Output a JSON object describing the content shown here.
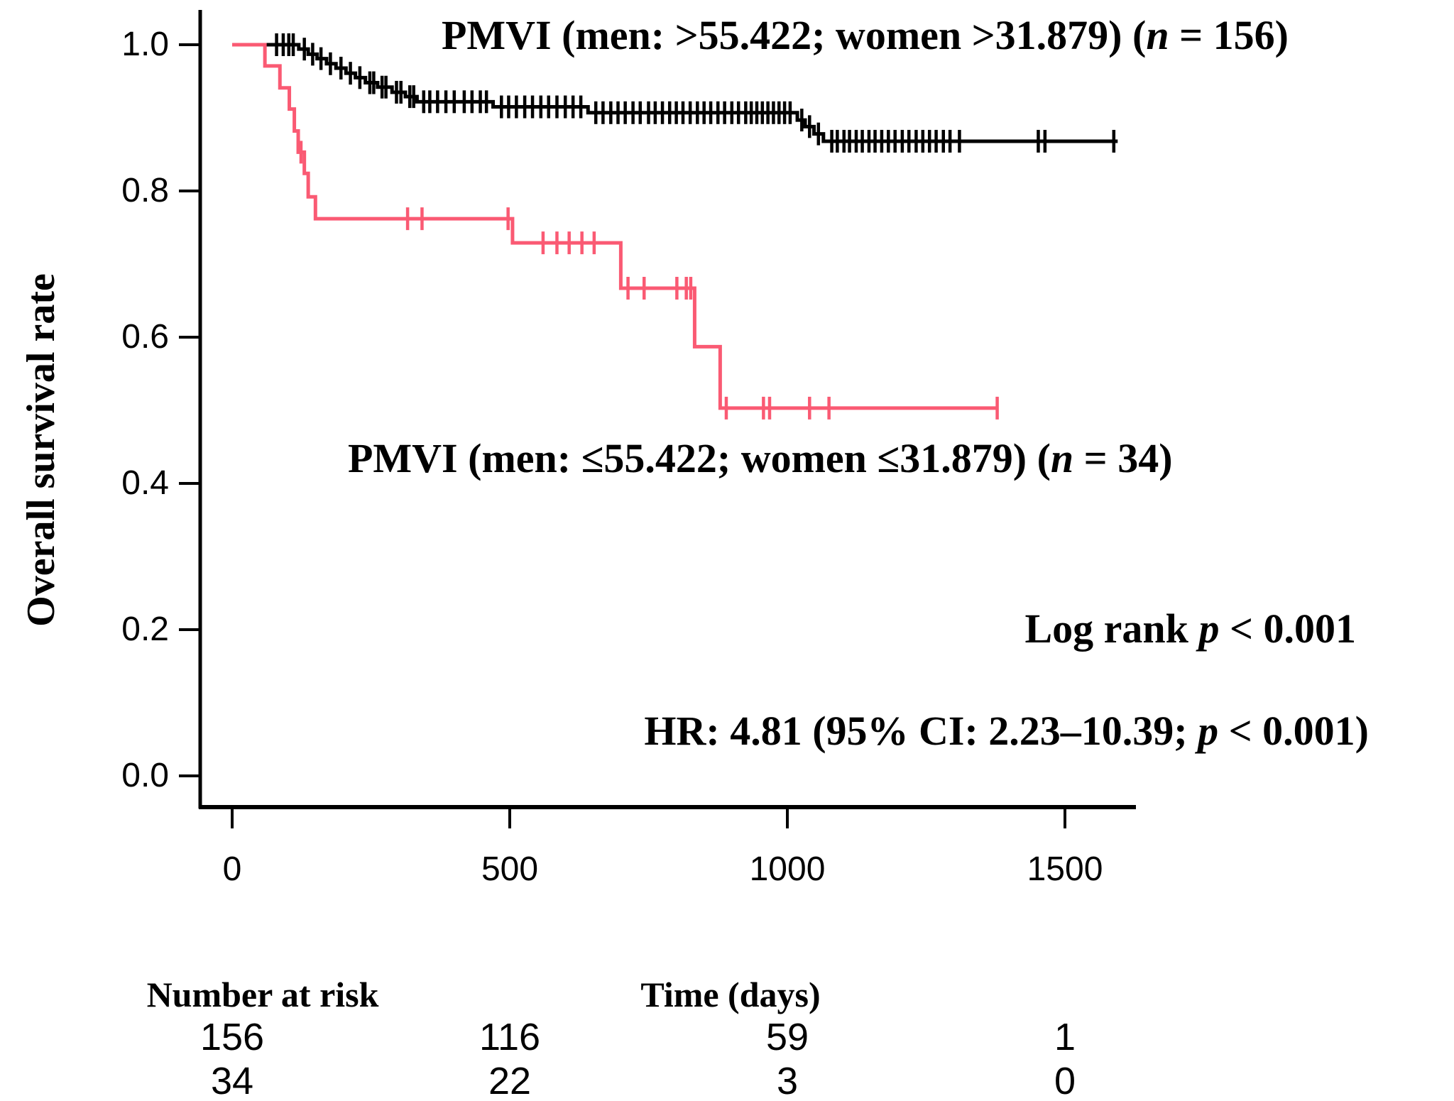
{
  "chart_data": {
    "type": "line",
    "subtype": "kaplan-meier-step-curves",
    "title": "",
    "xlabel": "Time (days)",
    "ylabel": "Overall survival rate",
    "xlim": [
      0,
      1656
    ],
    "ylim": [
      0.0,
      1.0
    ],
    "x_ticks": [
      0,
      500,
      1000,
      1500
    ],
    "y_ticks": [
      {
        "v": 1.0,
        "label": "1.0"
      },
      {
        "v": 0.8,
        "label": "0.8"
      },
      {
        "v": 0.6,
        "label": "0.6"
      },
      {
        "v": 0.4,
        "label": "0.4"
      },
      {
        "v": 0.2,
        "label": "0.2"
      },
      {
        "v": 0.0,
        "label": "0.0"
      }
    ],
    "grid": false,
    "legend_position": "labels-inside-plot",
    "series": [
      {
        "name": "pmvi-high",
        "label_parts": [
          "PMVI (men: >55.422; women >31.879) (",
          "n",
          " = 156)"
        ],
        "n": 156,
        "color": "#000000",
        "start": [
          0,
          1.0
        ],
        "steps": [
          [
            120,
            0.994
          ],
          [
            137,
            0.987
          ],
          [
            153,
            0.981
          ],
          [
            170,
            0.974
          ],
          [
            187,
            0.968
          ],
          [
            205,
            0.961
          ],
          [
            222,
            0.955
          ],
          [
            240,
            0.948
          ],
          [
            262,
            0.942
          ],
          [
            288,
            0.935
          ],
          [
            312,
            0.929
          ],
          [
            333,
            0.922
          ],
          [
            470,
            0.915
          ],
          [
            641,
            0.907
          ],
          [
            1018,
            0.897
          ],
          [
            1032,
            0.888
          ],
          [
            1048,
            0.878
          ],
          [
            1065,
            0.868
          ]
        ],
        "end_time": 1595,
        "final_survival": 0.868,
        "censor_times": [
          80,
          92,
          102,
          110,
          130,
          145,
          160,
          177,
          196,
          213,
          230,
          248,
          255,
          270,
          277,
          296,
          304,
          320,
          327,
          345,
          356,
          370,
          385,
          400,
          418,
          432,
          447,
          458,
          485,
          498,
          512,
          527,
          541,
          556,
          570,
          585,
          600,
          614,
          628,
          655,
          668,
          682,
          695,
          708,
          722,
          735,
          750,
          762,
          775,
          788,
          800,
          812,
          825,
          838,
          850,
          862,
          875,
          887,
          900,
          912,
          925,
          935,
          945,
          955,
          965,
          975,
          985,
          995,
          1005,
          1026,
          1040,
          1056,
          1080,
          1090,
          1102,
          1112,
          1124,
          1135,
          1147,
          1158,
          1170,
          1182,
          1194,
          1207,
          1219,
          1232,
          1244,
          1256,
          1268,
          1281,
          1293,
          1310,
          1452,
          1464,
          1588
        ]
      },
      {
        "name": "pmvi-low",
        "label_parts": [
          "PMVI (men: ≤55.422; women ≤31.879) (",
          "n",
          " = 34)"
        ],
        "n": 34,
        "color": "#FA5A73",
        "start": [
          0,
          1.0
        ],
        "steps": [
          [
            59,
            0.971
          ],
          [
            86,
            0.941
          ],
          [
            103,
            0.912
          ],
          [
            112,
            0.882
          ],
          [
            119,
            0.853
          ],
          [
            130,
            0.824
          ],
          [
            137,
            0.792
          ],
          [
            150,
            0.762
          ],
          [
            505,
            0.729
          ],
          [
            700,
            0.667
          ],
          [
            833,
            0.587
          ],
          [
            879,
            0.503
          ]
        ],
        "end_time": 1380,
        "final_survival": 0.503,
        "censor_times": [
          124,
          316,
          342,
          497,
          560,
          585,
          607,
          630,
          652,
          713,
          742,
          801,
          818,
          826,
          890,
          957,
          968,
          1040,
          1075,
          1378
        ]
      }
    ],
    "annotations": {
      "log_rank_parts": [
        "Log rank ",
        "p",
        " < 0.001"
      ],
      "hr_parts": [
        "HR: 4.81 (95% CI: 2.23–10.39; ",
        "p",
        " < 0.001)"
      ]
    },
    "risk_table": {
      "title": "Number at risk",
      "time_title": "Time (days)",
      "times": [
        0,
        500,
        1000,
        1500
      ],
      "rows": [
        {
          "series": "pmvi-high",
          "counts": [
            "156",
            "116",
            "59",
            "1"
          ]
        },
        {
          "series": "pmvi-low",
          "counts": [
            "34",
            "22",
            "3",
            "0"
          ]
        }
      ]
    }
  }
}
